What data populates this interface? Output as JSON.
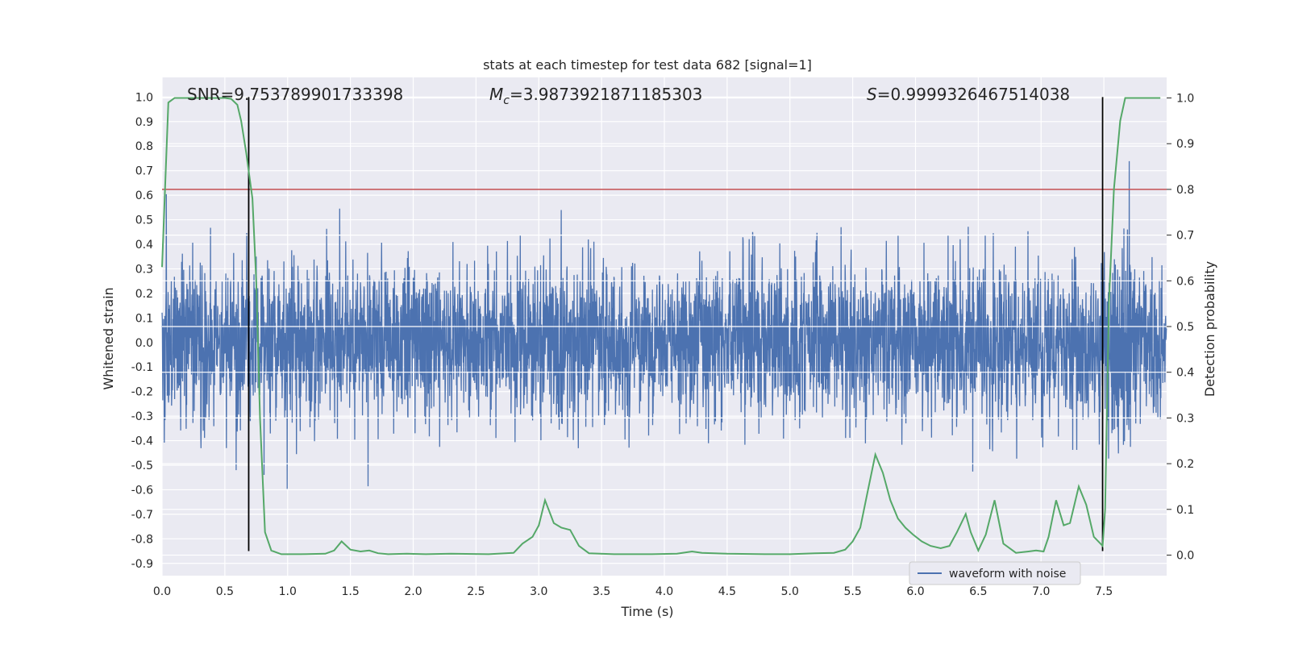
{
  "chart_data": {
    "type": "line",
    "title": "stats at each timestep for test data 682 [signal=1]",
    "xlabel": "Time (s)",
    "ylabel": "Whitened strain",
    "y2label": "Detection probability",
    "xlim": [
      0.0,
      8.0
    ],
    "ylim": [
      -0.95,
      1.08
    ],
    "y2lim": [
      -0.045,
      1.045
    ],
    "xticks": [
      "0.0",
      "0.5",
      "1.0",
      "1.5",
      "2.0",
      "2.5",
      "3.0",
      "3.5",
      "4.0",
      "4.5",
      "5.0",
      "5.5",
      "6.0",
      "6.5",
      "7.0",
      "7.5"
    ],
    "yticks": [
      "1.0",
      "0.9",
      "0.8",
      "0.7",
      "0.6",
      "0.5",
      "0.4",
      "0.3",
      "0.2",
      "0.1",
      "0.0",
      "-0.1",
      "-0.2",
      "-0.3",
      "-0.4",
      "-0.5",
      "-0.6",
      "-0.7",
      "-0.8",
      "-0.9"
    ],
    "y2ticks": [
      "1.0",
      "0.9",
      "0.8",
      "0.7",
      "0.6",
      "0.5",
      "0.4",
      "0.3",
      "0.2",
      "0.1",
      "0.0"
    ],
    "grid": true,
    "legend": {
      "placement": "lower-right",
      "entries": [
        "waveform with noise"
      ]
    },
    "annotations": {
      "snr": "SNR=9.753789901733398",
      "mc_symbol": "M",
      "mc_sub": "c",
      "mc_value": "=3.9873921871185303",
      "s_symbol": "S",
      "s_value": "=0.9999326467514038"
    },
    "threshold": {
      "y2": 0.8,
      "color": "#c44e52"
    },
    "vertical_lines": [
      0.69,
      7.49
    ],
    "waveform": {
      "name": "waveform with noise",
      "color": "#4c72b0",
      "noise_std": 0.16,
      "envelope_max": 0.72
    },
    "detection_probability": {
      "color": "#55a868",
      "x": [
        0.0,
        0.05,
        0.1,
        0.2,
        0.3,
        0.4,
        0.5,
        0.55,
        0.6,
        0.63,
        0.67,
        0.72,
        0.75,
        0.78,
        0.82,
        0.87,
        0.95,
        1.1,
        1.3,
        1.37,
        1.43,
        1.5,
        1.58,
        1.65,
        1.72,
        1.8,
        1.95,
        2.1,
        2.3,
        2.6,
        2.8,
        2.87,
        2.95,
        3.0,
        3.05,
        3.12,
        3.18,
        3.25,
        3.32,
        3.4,
        3.6,
        3.9,
        4.1,
        4.22,
        4.3,
        4.5,
        4.8,
        5.0,
        5.2,
        5.35,
        5.44,
        5.5,
        5.56,
        5.62,
        5.68,
        5.74,
        5.8,
        5.86,
        5.92,
        5.98,
        6.05,
        6.12,
        6.2,
        6.27,
        6.33,
        6.4,
        6.44,
        6.5,
        6.56,
        6.63,
        6.7,
        6.8,
        6.9,
        6.96,
        7.02,
        7.06,
        7.12,
        7.18,
        7.23,
        7.3,
        7.36,
        7.42,
        7.49,
        7.51,
        7.54,
        7.58,
        7.63,
        7.67,
        7.8,
        7.95
      ],
      "values": [
        0.63,
        0.99,
        1.0,
        1.0,
        1.0,
        1.0,
        1.0,
        0.998,
        0.985,
        0.95,
        0.88,
        0.78,
        0.6,
        0.3,
        0.05,
        0.01,
        0.002,
        0.002,
        0.003,
        0.01,
        0.03,
        0.012,
        0.008,
        0.01,
        0.004,
        0.002,
        0.003,
        0.002,
        0.003,
        0.002,
        0.005,
        0.025,
        0.04,
        0.065,
        0.12,
        0.07,
        0.06,
        0.055,
        0.02,
        0.004,
        0.002,
        0.002,
        0.003,
        0.008,
        0.005,
        0.003,
        0.002,
        0.002,
        0.004,
        0.005,
        0.012,
        0.03,
        0.06,
        0.14,
        0.22,
        0.18,
        0.12,
        0.08,
        0.06,
        0.045,
        0.03,
        0.02,
        0.015,
        0.02,
        0.05,
        0.09,
        0.05,
        0.01,
        0.045,
        0.12,
        0.025,
        0.005,
        0.008,
        0.01,
        0.008,
        0.04,
        0.12,
        0.065,
        0.07,
        0.15,
        0.11,
        0.04,
        0.02,
        0.1,
        0.55,
        0.8,
        0.95,
        1.0,
        1.0,
        1.0
      ]
    }
  }
}
